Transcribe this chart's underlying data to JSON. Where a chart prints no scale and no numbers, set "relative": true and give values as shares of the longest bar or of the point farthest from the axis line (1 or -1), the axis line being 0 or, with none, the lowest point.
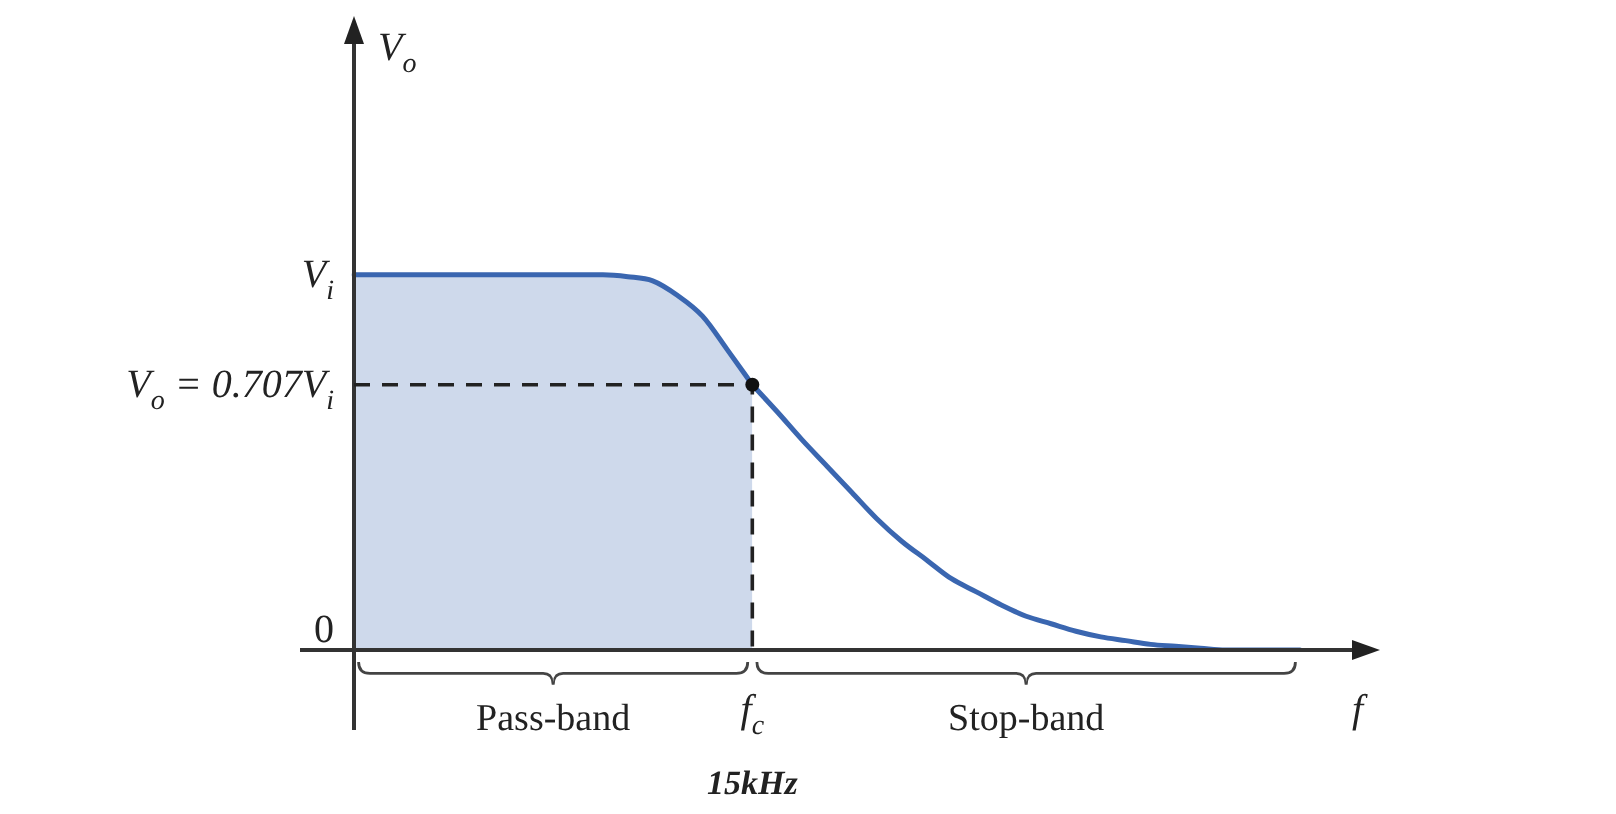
{
  "chart_data": {
    "type": "line",
    "relative": true,
    "xlabel": "f",
    "ylabel": "V$_{o}$",
    "categories": [
      null,
      null,
      null,
      null,
      null,
      null,
      null,
      null,
      null,
      null,
      null,
      null,
      null,
      null,
      null,
      null,
      null,
      null,
      null,
      null,
      null,
      null,
      null,
      null,
      null,
      null,
      null,
      null,
      null,
      null,
      null,
      null,
      null,
      null,
      null,
      null,
      null,
      null,
      null
    ],
    "grid": false,
    "legend": false,
    "line_style": "solid",
    "marker": "none",
    "series": [
      {
        "type": "area",
        "color": "#3a66b0",
        "values": [
          1,
          1,
          1,
          1,
          1,
          1,
          1,
          1,
          1,
          1,
          1,
          0.995,
          0.984,
          0.945,
          0.89,
          0.8,
          0.707,
          null,
          null,
          null,
          null,
          null,
          null,
          null,
          null,
          null,
          null,
          null,
          null,
          null,
          null,
          null,
          null,
          null,
          null,
          null,
          null,
          null,
          null
        ]
      },
      {
        "type": "line",
        "color": "#3a66b0",
        "values": [
          null,
          null,
          null,
          null,
          null,
          null,
          null,
          null,
          null,
          null,
          null,
          null,
          null,
          null,
          null,
          null,
          0.707,
          0.635,
          0.56,
          0.49,
          0.42,
          0.35,
          0.29,
          0.24,
          0.19,
          0.155,
          0.12,
          0.09,
          0.07,
          0.05,
          0.035,
          0.025,
          0.015,
          0.01,
          0.005,
          0,
          0,
          0,
          0
        ]
      }
    ],
    "ref_lines": [
      {
        "axis": "y",
        "value": 0.707,
        "line_style": "dashed",
        "color": "#222222"
      }
    ],
    "annotations": [
      "V$_{i}$",
      "V$_{o}$ = 0.707V$_{i}$",
      "0",
      "f$_{c}$",
      "Pass-band",
      "Stop-band",
      "15kHz"
    ]
  }
}
